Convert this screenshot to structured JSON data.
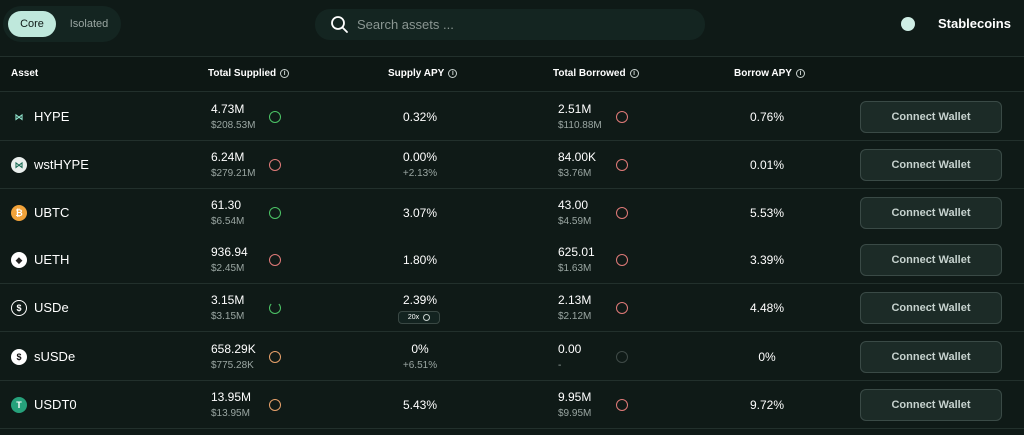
{
  "tabs": {
    "active": "Core",
    "inactive": "Isolated"
  },
  "search": {
    "placeholder": "Search assets ..."
  },
  "toggle": {
    "label": "Stablecoins"
  },
  "headers": {
    "asset": "Asset",
    "total_supplied": "Total Supplied",
    "supply_apy": "Supply APY",
    "total_borrowed": "Total Borrowed",
    "borrow_apy": "Borrow APY"
  },
  "colors": {
    "green_ring": "#4cc466",
    "red_ring": "#e07a78",
    "orange_ring": "#e6a06a",
    "grey_ring": "#3f4a47"
  },
  "rows": [
    {
      "name": "HYPE",
      "icon": "hype-icon",
      "supplied": "4.73M",
      "supplied_usd": "$208.53M",
      "supply_ring": "green-full",
      "supply_apy": "0.32%",
      "supply_apy_sub": "",
      "borrowed": "2.51M",
      "borrowed_usd": "$110.88M",
      "borrow_ring": "red",
      "borrow_apy": "0.76%",
      "button": "Connect Wallet"
    },
    {
      "name": "wstHYPE",
      "icon": "wsthype-icon",
      "supplied": "6.24M",
      "supplied_usd": "$279.21M",
      "supply_ring": "red",
      "supply_apy": "0.00%",
      "supply_apy_sub": "+2.13%",
      "borrowed": "84.00K",
      "borrowed_usd": "$3.76M",
      "borrow_ring": "red",
      "borrow_apy": "0.01%",
      "button": "Connect Wallet"
    },
    {
      "name": "UBTC",
      "icon": "bitcoin-icon",
      "supplied": "61.30",
      "supplied_usd": "$6.54M",
      "supply_ring": "green-full",
      "supply_apy": "3.07%",
      "supply_apy_sub": "",
      "borrowed": "43.00",
      "borrowed_usd": "$4.59M",
      "borrow_ring": "red",
      "borrow_apy": "5.53%",
      "button": "Connect Wallet"
    },
    {
      "name": "UETH",
      "icon": "ethereum-icon",
      "supplied": "936.94",
      "supplied_usd": "$2.45M",
      "supply_ring": "red",
      "supply_apy": "1.80%",
      "supply_apy_sub": "",
      "borrowed": "625.01",
      "borrowed_usd": "$1.63M",
      "borrow_ring": "red",
      "borrow_apy": "3.39%",
      "button": "Connect Wallet"
    },
    {
      "name": "USDe",
      "icon": "usde-icon",
      "supplied": "3.15M",
      "supplied_usd": "$3.15M",
      "supply_ring": "green-partial",
      "supply_apy": "2.39%",
      "supply_apy_sub": "",
      "badge": "20x",
      "borrowed": "2.13M",
      "borrowed_usd": "$2.12M",
      "borrow_ring": "red",
      "borrow_apy": "4.48%",
      "button": "Connect Wallet"
    },
    {
      "name": "sUSDe",
      "icon": "susde-icon",
      "supplied": "658.29K",
      "supplied_usd": "$775.28K",
      "supply_ring": "orange",
      "supply_apy": "0%",
      "supply_apy_sub": "+6.51%",
      "borrowed": "0.00",
      "borrowed_usd": "-",
      "borrow_ring": "grey",
      "borrow_apy": "0%",
      "button": "Connect Wallet"
    },
    {
      "name": "USDT0",
      "icon": "tether-icon",
      "supplied": "13.95M",
      "supplied_usd": "$13.95M",
      "supply_ring": "orange",
      "supply_apy": "5.43%",
      "supply_apy_sub": "",
      "borrowed": "9.95M",
      "borrowed_usd": "$9.95M",
      "borrow_ring": "red",
      "borrow_apy": "9.72%",
      "button": "Connect Wallet"
    }
  ]
}
